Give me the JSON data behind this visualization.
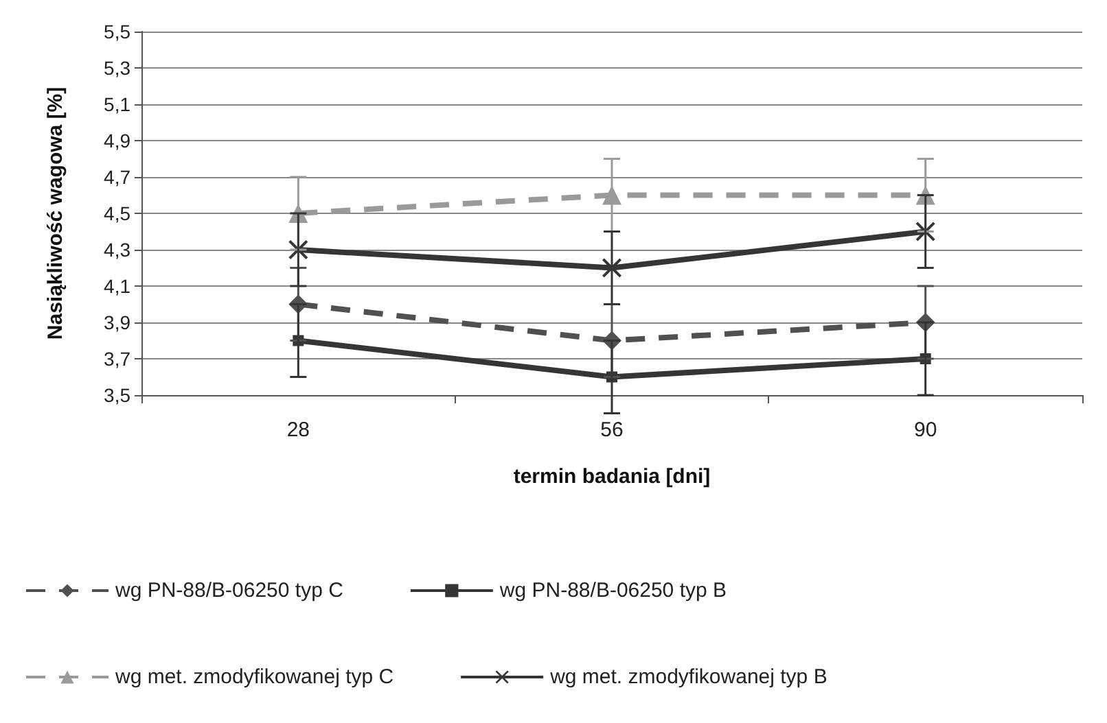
{
  "chart_data": {
    "type": "line",
    "xlabel": "termin badania [dni]",
    "ylabel": "Nasiąkliwość wagowa [%]",
    "categories": [
      "28",
      "56",
      "90"
    ],
    "ylim": [
      3.5,
      5.5
    ],
    "yticks": [
      {
        "value": 3.5,
        "label": "3,5"
      },
      {
        "value": 3.7,
        "label": "3,7"
      },
      {
        "value": 3.9,
        "label": "3,9"
      },
      {
        "value": 4.1,
        "label": "4,1"
      },
      {
        "value": 4.3,
        "label": "4,3"
      },
      {
        "value": 4.5,
        "label": "4,5"
      },
      {
        "value": 4.7,
        "label": "4,7"
      },
      {
        "value": 4.9,
        "label": "4,9"
      },
      {
        "value": 5.1,
        "label": "5,1"
      },
      {
        "value": 5.3,
        "label": "5,3"
      },
      {
        "value": 5.5,
        "label": "5,5"
      }
    ],
    "grid": "y",
    "legend": "bottom",
    "series": [
      {
        "name": "wg PN-88/B-06250 typ C",
        "color": "#505050",
        "values": [
          4.0,
          3.8,
          3.9
        ],
        "errors": [
          0.2,
          0.2,
          0.2
        ],
        "marker": "diamond",
        "line_style": "dashed"
      },
      {
        "name": "wg PN-88/B-06250 typ B",
        "color": "#353535",
        "values": [
          3.8,
          3.6,
          3.7
        ],
        "errors": [
          0.2,
          0.2,
          0.2
        ],
        "marker": "square",
        "line_style": "solid"
      },
      {
        "name": "wg met. zmodyfikowanej typ C",
        "color": "#9a9a9a",
        "values": [
          4.5,
          4.6,
          4.6
        ],
        "errors": [
          0.2,
          0.2,
          0.2
        ],
        "marker": "triangle",
        "line_style": "dashed"
      },
      {
        "name": "wg met. zmodyfikowanej typ B",
        "color": "#353535",
        "values": [
          4.3,
          4.2,
          4.4
        ],
        "errors": [
          0.2,
          0.2,
          0.2
        ],
        "marker": "cross",
        "line_style": "solid"
      }
    ]
  }
}
